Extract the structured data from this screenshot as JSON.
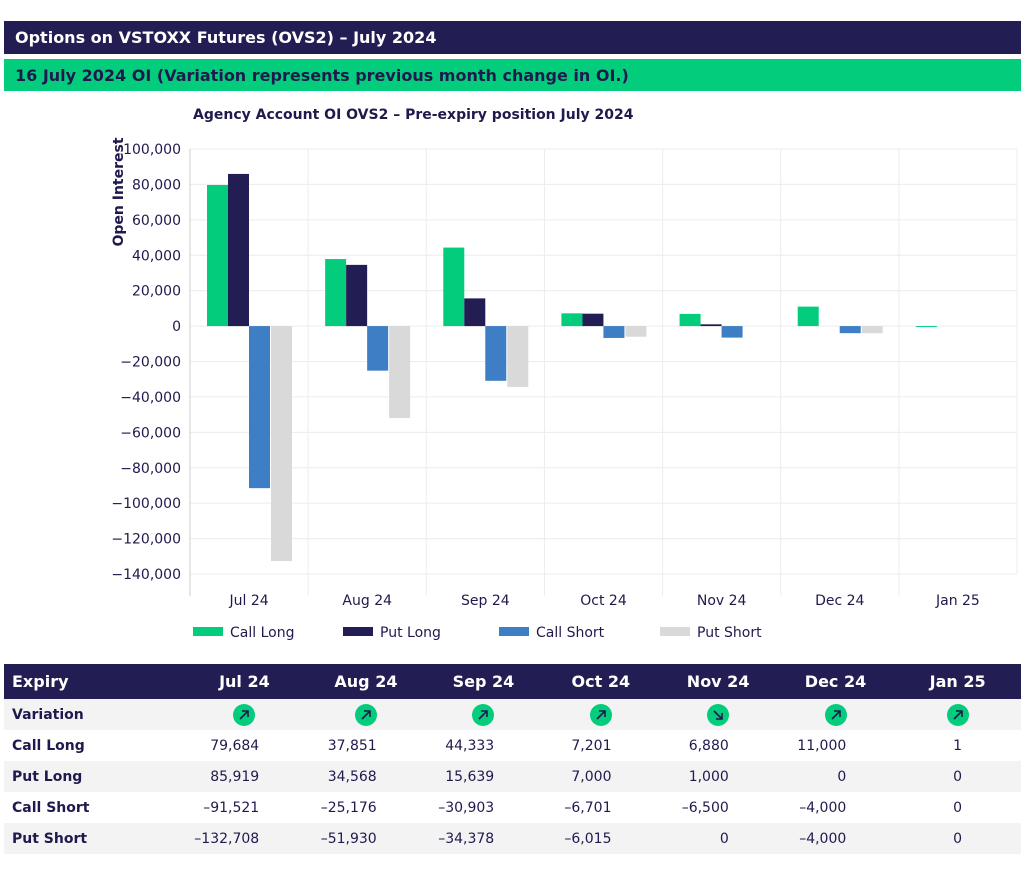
{
  "header": {
    "title": "Options on VSTOXX Futures (OVS2) – July 2024",
    "subtitle": "16 July 2024 OI (Variation represents previous month change in OI.)"
  },
  "colors": {
    "navy": "#221d52",
    "green": "#04cc7d",
    "call_long": "#04cc7d",
    "put_long": "#221d52",
    "call_short": "#3d7ec4",
    "put_short": "#d9d9d9"
  },
  "chart_data": {
    "type": "bar",
    "title": "Agency Account OI OVS2 – Pre-expiry position July 2024",
    "xlabel": "",
    "ylabel": "Open Interest",
    "ylim": [
      -140000,
      100000
    ],
    "yticks": [
      100000,
      80000,
      60000,
      40000,
      20000,
      0,
      -20000,
      -40000,
      -60000,
      -80000,
      -100000,
      -120000,
      -140000
    ],
    "ytick_labels": [
      "100,000",
      "80,000",
      "60,000",
      "40,000",
      "20,000",
      "0",
      "−20,000",
      "−40,000",
      "−60,000",
      "−80,000",
      "−100,000",
      "−120,000",
      "−140,000"
    ],
    "categories": [
      "Jul 24",
      "Aug 24",
      "Sep 24",
      "Oct 24",
      "Nov 24",
      "Dec 24",
      "Jan 25"
    ],
    "series": [
      {
        "name": "Call Long",
        "color": "#04cc7d",
        "values": [
          79684,
          37851,
          44333,
          7201,
          6880,
          11000,
          1
        ]
      },
      {
        "name": "Put Long",
        "color": "#221d52",
        "values": [
          85919,
          34568,
          15639,
          7000,
          1000,
          0,
          0
        ]
      },
      {
        "name": "Call Short",
        "color": "#3d7ec4",
        "values": [
          -91521,
          -25176,
          -30903,
          -6701,
          -6500,
          -4000,
          0
        ]
      },
      {
        "name": "Put Short",
        "color": "#d9d9d9",
        "values": [
          -132708,
          -51930,
          -34378,
          -6015,
          0,
          -4000,
          0
        ]
      }
    ],
    "legend": "bottom",
    "grid": true
  },
  "table": {
    "header_label": "Expiry",
    "columns": [
      "Jul 24",
      "Aug 24",
      "Sep 24",
      "Oct 24",
      "Nov 24",
      "Dec 24",
      "Jan 25"
    ],
    "variation_label": "Variation",
    "variation": [
      "up",
      "up",
      "up",
      "up",
      "down",
      "up",
      "up"
    ],
    "rows": [
      {
        "label": "Call Long",
        "values": [
          "79,684",
          "37,851",
          "44,333",
          "7,201",
          "6,880",
          "11,000",
          "1"
        ]
      },
      {
        "label": "Put Long",
        "values": [
          "85,919",
          "34,568",
          "15,639",
          "7,000",
          "1,000",
          "0",
          "0"
        ]
      },
      {
        "label": "Call Short",
        "values": [
          "–91,521",
          "–25,176",
          "–30,903",
          "–6,701",
          "–6,500",
          "–4,000",
          "0"
        ]
      },
      {
        "label": "Put Short",
        "values": [
          "–132,708",
          "–51,930",
          "–34,378",
          "–6,015",
          "0",
          "–4,000",
          "0"
        ]
      }
    ]
  }
}
